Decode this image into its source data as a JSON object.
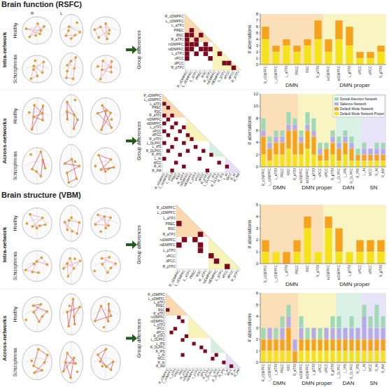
{
  "headers": [
    "Brain function (RSFC)",
    "Brain structure (VBM)"
  ],
  "orientation_labels": [
    "R",
    "L"
  ],
  "rows": [
    {
      "label": "Intra-network",
      "subjects": [
        "Healthy",
        "Schizophrenia"
      ]
    },
    {
      "label": "Across-networks",
      "subjects": [
        "Healthy",
        "Schizophrenia"
      ]
    },
    {
      "label": "Intra-network",
      "subjects": [
        "Healthy",
        "Schizophrenia"
      ]
    },
    {
      "label": "Across-networks",
      "subjects": [
        "Healthy",
        "Schizophrenia"
      ]
    }
  ],
  "matrices": [
    {
      "axis_label": "Group differences",
      "labels": [
        "R_cDMPFC",
        "L_cDMPFC",
        "L_aTPJ",
        "PREC",
        "RSC",
        "R_aTPJ",
        "rvDMPFC",
        "rdDMPFC",
        "L_pTPJ",
        "vPCC",
        "dPCC",
        "R_pTPJ"
      ],
      "cells": [
        [
          3,
          1
        ],
        [
          4,
          0
        ],
        [
          4,
          1
        ],
        [
          4,
          3
        ],
        [
          5,
          0
        ],
        [
          5,
          2
        ],
        [
          6,
          0
        ],
        [
          6,
          1
        ],
        [
          6,
          2
        ],
        [
          6,
          4
        ],
        [
          7,
          0
        ],
        [
          7,
          1
        ],
        [
          7,
          3
        ],
        [
          7,
          4
        ],
        [
          7,
          5
        ],
        [
          8,
          0
        ],
        [
          8,
          2
        ],
        [
          8,
          4
        ],
        [
          8,
          7
        ],
        [
          9,
          0
        ],
        [
          9,
          5
        ],
        [
          10,
          8
        ],
        [
          10,
          9
        ],
        [
          11,
          10
        ]
      ]
    },
    {
      "axis_label": "Group differences",
      "labels": [
        "R_cDMPFC",
        "L_cDMPFC",
        "L_aTPJ",
        "PREC",
        "RSC",
        "R_aTPJ",
        "rvDMPFC",
        "rdDMPFC",
        "L_pTPJ",
        "vPCC",
        "dPCC",
        "R_pTPJ",
        "L_DLPFC",
        "L_IPS",
        "R_DLPFC",
        "R_IPS",
        "L_AI",
        "MCC",
        "R_AI",
        "R_AM"
      ],
      "cells": [
        [
          2,
          0
        ],
        [
          3,
          1
        ],
        [
          5,
          0
        ],
        [
          5,
          2
        ],
        [
          6,
          1
        ],
        [
          7,
          0
        ],
        [
          7,
          3
        ],
        [
          8,
          2
        ],
        [
          8,
          5
        ],
        [
          9,
          0
        ],
        [
          9,
          4
        ],
        [
          10,
          1
        ],
        [
          10,
          6
        ],
        [
          11,
          3
        ],
        [
          11,
          7
        ],
        [
          12,
          0
        ],
        [
          12,
          5
        ],
        [
          13,
          2
        ],
        [
          13,
          8
        ],
        [
          14,
          1
        ],
        [
          14,
          6
        ],
        [
          14,
          10
        ],
        [
          15,
          4
        ],
        [
          15,
          12
        ],
        [
          16,
          0
        ],
        [
          16,
          9
        ],
        [
          17,
          3
        ],
        [
          17,
          14
        ],
        [
          18,
          5
        ],
        [
          18,
          16
        ],
        [
          19,
          2
        ],
        [
          19,
          11
        ]
      ]
    },
    {
      "axis_label": "Group differences",
      "labels": [
        "R_cDMPFC",
        "L_cDMPFC",
        "L_aTPJ",
        "PREC",
        "RSC",
        "R_aTPJ",
        "rvDMPFC",
        "rdDMPFC",
        "L_pTPJ",
        "vPCC",
        "dPCC",
        "R_pTPJ"
      ],
      "cells": [
        [
          3,
          0
        ],
        [
          5,
          4
        ],
        [
          6,
          1
        ],
        [
          6,
          3
        ],
        [
          7,
          0
        ],
        [
          7,
          4
        ],
        [
          8,
          4
        ],
        [
          9,
          6
        ],
        [
          10,
          7
        ],
        [
          11,
          9
        ]
      ]
    },
    {
      "axis_label": "Group differences",
      "labels": [
        "R_cDMPFC",
        "L_cDMPFC",
        "L_aTPJ",
        "PREC",
        "RSC",
        "R_aTPJ",
        "rvDMPFC",
        "rdDMPFC",
        "L_pTPJ",
        "vPCC",
        "dPCC",
        "R_pTPJ",
        "L_DLPFC",
        "L_IPS",
        "R_DLPFC",
        "R_IPS",
        "L_AI",
        "MCC",
        "R_AI",
        "R_AM"
      ],
      "cells": [
        [
          4,
          0
        ],
        [
          6,
          3
        ],
        [
          7,
          4
        ],
        [
          9,
          2
        ],
        [
          10,
          1
        ],
        [
          11,
          5
        ],
        [
          12,
          4
        ],
        [
          13,
          7
        ],
        [
          14,
          9
        ],
        [
          15,
          10
        ],
        [
          16,
          4
        ],
        [
          16,
          13
        ],
        [
          17,
          12
        ],
        [
          18,
          15
        ],
        [
          19,
          17
        ]
      ]
    }
  ],
  "chart_data": [
    {
      "type": "bar",
      "stacked": true,
      "y_label": "# aberrations",
      "categories": [
        "R_cDMPFC",
        "L_cDMPFC",
        "L_aTPJ",
        "PREC",
        "RSC",
        "R_aTPJ",
        "rvDMPFC",
        "rdDMPFC",
        "L_pTPJ",
        "vPCC",
        "dPCC",
        "R_pTPJ"
      ],
      "category_groups": [
        {
          "label": "DMN",
          "count": 6,
          "color": "#f7c98a"
        },
        {
          "label": "DMN proper",
          "count": 6,
          "color": "#f5ee9a"
        }
      ],
      "series": [
        {
          "color": "#f5a31a",
          "values": [
            2,
            1,
            1,
            1,
            1,
            3,
            2,
            3,
            3,
            1,
            1,
            1
          ]
        },
        {
          "color": "#f3e21c",
          "values": [
            4,
            2,
            3,
            2,
            3,
            4,
            2,
            4,
            3,
            1,
            1,
            2
          ]
        }
      ],
      "ylim": [
        0,
        8
      ],
      "yticks": [
        0,
        1,
        2,
        3,
        4,
        5,
        6,
        7,
        8
      ]
    },
    {
      "type": "bar",
      "stacked": true,
      "y_label": "# aberrations",
      "legend": "top-right",
      "categories": [
        "R_cDMPFC",
        "L_cDMPFC",
        "L_aTPJ",
        "PREC",
        "RSC",
        "R_aTPJ",
        "rvDMPFC",
        "rdDMPFC",
        "L_pTPJ",
        "vPCC",
        "dPCC",
        "R_pTPJ",
        "L_DLPFC",
        "L_IPS",
        "R_DLPFC",
        "R_IPS",
        "L_AI",
        "MCC",
        "R_AI",
        "R_AM"
      ],
      "category_groups": [
        {
          "label": "DMN",
          "count": 6,
          "color": "#f7c98a"
        },
        {
          "label": "DMN proper",
          "count": 6,
          "color": "#f5ee9a"
        },
        {
          "label": "DAN",
          "count": 4,
          "color": "#c3e8d6"
        },
        {
          "label": "SN",
          "count": 4,
          "color": "#d9d2f2"
        }
      ],
      "series": [
        {
          "name": "Dorsal Attention Network",
          "color": "#9fd8b4",
          "values": [
            2,
            1,
            1,
            1,
            2,
            1,
            1,
            2,
            2,
            1,
            1,
            1,
            1,
            1,
            1,
            1,
            1,
            0,
            1,
            1
          ]
        },
        {
          "name": "Salience Network",
          "color": "#b6abe6",
          "values": [
            1,
            1,
            1,
            1,
            1,
            1,
            1,
            1,
            1,
            1,
            0,
            1,
            1,
            1,
            1,
            0,
            1,
            1,
            1,
            1
          ]
        },
        {
          "name": "Default Mode Network",
          "color": "#f5a31a",
          "values": [
            3,
            2,
            2,
            2,
            3,
            4,
            2,
            3,
            3,
            1,
            2,
            2,
            2,
            2,
            2,
            1,
            1,
            1,
            1,
            1
          ]
        },
        {
          "name": "Default Mode Network Proper",
          "color": "#f3e21c",
          "values": [
            2,
            1,
            2,
            2,
            3,
            2,
            2,
            3,
            2,
            1,
            1,
            2,
            1,
            2,
            1,
            1,
            1,
            1,
            1,
            1
          ]
        }
      ],
      "ylim": [
        0,
        12
      ],
      "yticks": [
        0,
        2,
        4,
        6,
        8,
        10,
        12
      ]
    },
    {
      "type": "bar",
      "stacked": true,
      "y_label": "# aberrations",
      "categories": [
        "R_cDMPFC",
        "L_cDMPFC",
        "L_aTPJ",
        "PREC",
        "RSC",
        "R_aTPJ",
        "rvDMPFC",
        "rdDMPFC",
        "L_pTPJ",
        "vPCC",
        "dPCC",
        "R_pTPJ"
      ],
      "category_groups": [
        {
          "label": "DMN",
          "count": 6,
          "color": "#f7c98a"
        },
        {
          "label": "DMN proper",
          "count": 6,
          "color": "#f5ee9a"
        }
      ],
      "series": [
        {
          "color": "#f5a31a",
          "values": [
            1,
            0,
            1,
            1,
            1,
            0,
            1,
            2,
            0,
            1,
            1,
            1
          ]
        },
        {
          "color": "#f3e21c",
          "values": [
            1,
            1,
            0,
            1,
            3,
            1,
            3,
            1,
            1,
            1,
            1,
            1
          ]
        }
      ],
      "ylim": [
        0,
        5
      ],
      "yticks": [
        0,
        1,
        2,
        3,
        4,
        5
      ]
    },
    {
      "type": "bar",
      "stacked": true,
      "y_label": "# aberrations",
      "categories": [
        "R_cDMPFC",
        "L_cDMPFC",
        "L_aTPJ",
        "PREC",
        "RSC",
        "R_aTPJ",
        "rvDMPFC",
        "rdDMPFC",
        "L_pTPJ",
        "vPCC",
        "dPCC",
        "R_pTPJ",
        "L_DLPFC",
        "L_IPS",
        "R_DLPFC",
        "R_IPS",
        "L_AI",
        "MCC",
        "R_AI",
        "R_AM"
      ],
      "category_groups": [
        {
          "label": "DMN",
          "count": 6,
          "color": "#f7c98a"
        },
        {
          "label": "DMN proper",
          "count": 6,
          "color": "#f5ee9a"
        },
        {
          "label": "DAN",
          "count": 4,
          "color": "#c3e8d6"
        },
        {
          "label": "SN",
          "count": 4,
          "color": "#d9d2f2"
        }
      ],
      "series": [
        {
          "color": "#9fd8b4",
          "values": [
            1,
            0,
            1,
            1,
            1,
            0,
            1,
            1,
            0,
            1,
            0,
            1,
            1,
            0,
            1,
            0,
            1,
            1,
            2,
            1
          ]
        },
        {
          "color": "#b6abe6",
          "values": [
            0,
            1,
            0,
            1,
            1,
            1,
            1,
            0,
            1,
            0,
            1,
            1,
            1,
            1,
            1,
            1,
            2,
            1,
            1,
            1
          ]
        },
        {
          "color": "#f5a31a",
          "values": [
            1,
            1,
            1,
            1,
            2,
            1,
            1,
            1,
            1,
            1,
            1,
            1,
            1,
            1,
            1,
            1,
            1,
            1,
            1,
            1
          ]
        },
        {
          "color": "#f3e21c",
          "values": [
            1,
            1,
            1,
            1,
            1,
            0,
            1,
            1,
            1,
            1,
            1,
            1,
            1,
            1,
            1,
            1,
            1,
            1,
            1,
            1
          ]
        }
      ],
      "ylim": [
        0,
        6
      ],
      "yticks": [
        0,
        1,
        2,
        3,
        4,
        5,
        6
      ]
    }
  ]
}
